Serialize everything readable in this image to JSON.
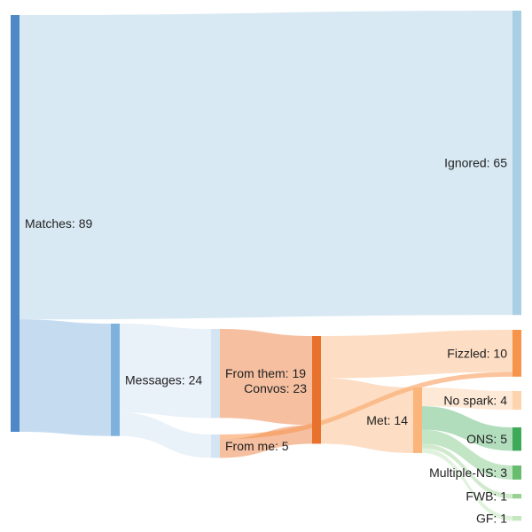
{
  "colors": {
    "matches": "#4f88c6",
    "ignored": "#a9cfe4",
    "messages": "#7eb2dd",
    "from_me": "#d4e4f3",
    "from_them": "#d4e4f3",
    "convos": "#e8712d",
    "met": "#fbb47a",
    "fizzled": "#f7944b",
    "no_spark": "#fdd4ad",
    "ons": "#3fa95a",
    "multiple_ns": "#67bd6d",
    "fwb": "#99d193",
    "gf": "#c5e7bf"
  },
  "chart_data": {
    "type": "sankey",
    "nodes": [
      {
        "id": "matches",
        "label": "Matches: 89",
        "value": 89
      },
      {
        "id": "ignored",
        "label": "Ignored: 65",
        "value": 65
      },
      {
        "id": "messages",
        "label": "Messages: 24",
        "value": 24
      },
      {
        "id": "from_them",
        "label": "From them: 19",
        "value": 19
      },
      {
        "id": "from_me",
        "label": "From me: 5",
        "value": 5
      },
      {
        "id": "convos",
        "label": "Convos: 23",
        "value": 23
      },
      {
        "id": "fizzled",
        "label": "Fizzled: 10",
        "value": 10
      },
      {
        "id": "met",
        "label": "Met: 14",
        "value": 14
      },
      {
        "id": "no_spark",
        "label": "No spark: 4",
        "value": 4
      },
      {
        "id": "ons",
        "label": "ONS: 5",
        "value": 5
      },
      {
        "id": "multiple_ns",
        "label": "Multiple-NS: 3",
        "value": 3
      },
      {
        "id": "fwb",
        "label": "FWB: 1",
        "value": 1
      },
      {
        "id": "gf",
        "label": "GF: 1",
        "value": 1
      }
    ],
    "links": [
      {
        "source": "matches",
        "target": "ignored",
        "value": 65
      },
      {
        "source": "matches",
        "target": "messages",
        "value": 24
      },
      {
        "source": "messages",
        "target": "from_them",
        "value": 19
      },
      {
        "source": "messages",
        "target": "from_me",
        "value": 5
      },
      {
        "source": "from_them",
        "target": "convos",
        "value": 19
      },
      {
        "source": "from_me",
        "target": "convos",
        "value": 4
      },
      {
        "source": "from_me",
        "target": "fizzled",
        "value": 1
      },
      {
        "source": "convos",
        "target": "fizzled",
        "value": 9
      },
      {
        "source": "convos",
        "target": "met",
        "value": 14
      },
      {
        "source": "met",
        "target": "no_spark",
        "value": 4
      },
      {
        "source": "met",
        "target": "ons",
        "value": 5
      },
      {
        "source": "met",
        "target": "multiple_ns",
        "value": 3
      },
      {
        "source": "met",
        "target": "fwb",
        "value": 1
      },
      {
        "source": "met",
        "target": "gf",
        "value": 1
      }
    ]
  }
}
